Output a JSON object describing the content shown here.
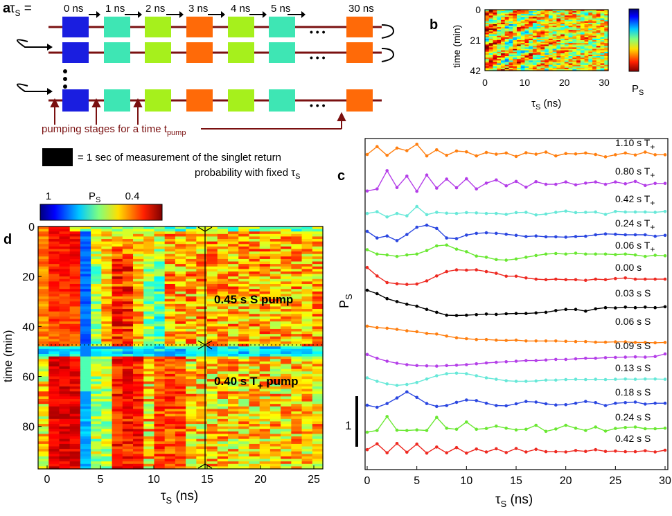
{
  "panel_a": {
    "label": "a",
    "tau_symbol": "τ",
    "tau_sub": "S",
    "tau_eq": " =",
    "times": [
      "0 ns",
      "1 ns",
      "2 ns",
      "3 ns",
      "4 ns",
      "5 ns",
      "30 ns"
    ],
    "block_colors": [
      "#1a1ee0",
      "#3ee6b4",
      "#a6f01c",
      "#ff6a08",
      "#a6f01c",
      "#3ee6b4",
      "#ff6a08"
    ],
    "ellipsis": "• • •",
    "wire_color": "#7a1010",
    "pump_text_main": "pumping stages for a time t",
    "pump_text_sub": "pump",
    "legend_line1": "= 1 sec of measurement of the singlet return",
    "legend_line2": "probability with fixed ",
    "legend_tau": "τ",
    "legend_tau_sub": "S"
  },
  "panel_b": {
    "label": "b",
    "ylabel": "time (min)",
    "yticks": [
      "0",
      "21",
      "42"
    ],
    "xticks": [
      "0",
      "10",
      "20",
      "30"
    ],
    "xlabel_main": "τ",
    "xlabel_sub": "S",
    "xlabel_unit": " (ns)",
    "colorbar_label_main": "P",
    "colorbar_label_sub": "S"
  },
  "panel_c": {
    "label": "c",
    "ylabel_main": "P",
    "ylabel_sub": "S",
    "xlabel_main": "τ",
    "xlabel_sub": "S",
    "xlabel_unit": " (ns)",
    "xticks": [
      "0",
      "5",
      "10",
      "15",
      "20",
      "25",
      "30"
    ],
    "scale_bar_label": "1"
  },
  "panel_d": {
    "label": "d",
    "colorbar_left": "1",
    "colorbar_mid_main": "P",
    "colorbar_mid_sub": "S",
    "colorbar_right": "0.4",
    "ylabel": "time (min)",
    "yticks": [
      "0",
      "20",
      "40",
      "60",
      "80"
    ],
    "xticks": [
      "0",
      "5",
      "10",
      "15",
      "20",
      "25"
    ],
    "xlabel_main": "τ",
    "xlabel_sub": "S",
    "xlabel_unit": " (ns)",
    "annotation_top": "0.45 s S pump",
    "annotation_bottom_main": "0.40 s T",
    "annotation_bottom_sub": "+",
    "annotation_bottom_end": " pump"
  },
  "chart_data": [
    {
      "type": "line",
      "panel": "c",
      "xlabel": "τS (ns)",
      "ylabel": "PS",
      "xlim": [
        0,
        30
      ],
      "x": [
        0,
        1,
        2,
        3,
        4,
        5,
        6,
        7,
        8,
        9,
        10,
        11,
        12,
        13,
        14,
        15,
        16,
        17,
        18,
        19,
        20,
        21,
        22,
        23,
        24,
        25,
        26,
        27,
        28,
        29,
        30
      ],
      "series": [
        {
          "name": "1.10 s T+",
          "color": "#ff7f10",
          "values": [
            0.5,
            0.77,
            0.47,
            0.72,
            0.63,
            0.85,
            0.45,
            0.66,
            0.47,
            0.62,
            0.59,
            0.45,
            0.57,
            0.51,
            0.55,
            0.43,
            0.56,
            0.51,
            0.58,
            0.45,
            0.53,
            0.52,
            0.55,
            0.5,
            0.42,
            0.49,
            0.55,
            0.48,
            0.58,
            0.49,
            0.49
          ]
        },
        {
          "name": "0.80 s T+",
          "color": "#b43ee8",
          "values": [
            0.22,
            0.29,
            0.92,
            0.34,
            0.73,
            0.21,
            0.77,
            0.32,
            0.63,
            0.33,
            0.64,
            0.29,
            0.49,
            0.6,
            0.4,
            0.55,
            0.35,
            0.54,
            0.45,
            0.45,
            0.53,
            0.43,
            0.49,
            0.53,
            0.45,
            0.53,
            0.47,
            0.55,
            0.41,
            0.48,
            0.48
          ]
        },
        {
          "name": "0.42 s T+",
          "color": "#66e8d8",
          "values": [
            0.4,
            0.46,
            0.28,
            0.4,
            0.32,
            0.64,
            0.36,
            0.44,
            0.41,
            0.4,
            0.43,
            0.42,
            0.4,
            0.4,
            0.37,
            0.43,
            0.44,
            0.35,
            0.38,
            0.44,
            0.48,
            0.43,
            0.44,
            0.45,
            0.37,
            0.47,
            0.45,
            0.45,
            0.45,
            0.44,
            0.47
          ]
        },
        {
          "name": "0.24 s T+",
          "color": "#2a46e0",
          "values": [
            0.62,
            0.39,
            0.46,
            0.3,
            0.51,
            0.76,
            0.83,
            0.72,
            0.39,
            0.37,
            0.49,
            0.55,
            0.57,
            0.55,
            0.52,
            0.48,
            0.44,
            0.46,
            0.43,
            0.43,
            0.42,
            0.44,
            0.45,
            0.5,
            0.53,
            0.52,
            0.5,
            0.5,
            0.5,
            0.45,
            0.48
          ]
        },
        {
          "name": "0.06 s T+",
          "color": "#6ae832",
          "values": [
            0.75,
            0.6,
            0.57,
            0.52,
            0.57,
            0.6,
            0.72,
            0.88,
            0.91,
            0.77,
            0.68,
            0.53,
            0.49,
            0.41,
            0.39,
            0.43,
            0.49,
            0.55,
            0.6,
            0.62,
            0.6,
            0.63,
            0.6,
            0.6,
            0.6,
            0.58,
            0.6,
            0.57,
            0.52,
            0.56,
            0.54
          ]
        },
        {
          "name": "0.00 s",
          "color": "#ee2a22",
          "values": [
            0.9,
            0.61,
            0.38,
            0.34,
            0.32,
            0.33,
            0.44,
            0.61,
            0.76,
            0.82,
            0.81,
            0.82,
            0.76,
            0.7,
            0.6,
            0.6,
            0.54,
            0.5,
            0.48,
            0.5,
            0.48,
            0.48,
            0.46,
            0.5,
            0.48,
            0.52,
            0.54,
            0.5,
            0.5,
            0.5,
            0.5
          ]
        },
        {
          "name": "0.03 s S",
          "color": "#000000",
          "values": [
            1.0,
            0.88,
            0.71,
            0.61,
            0.52,
            0.45,
            0.34,
            0.24,
            0.14,
            0.13,
            0.14,
            0.16,
            0.18,
            0.17,
            0.19,
            0.2,
            0.2,
            0.22,
            0.24,
            0.3,
            0.34,
            0.34,
            0.28,
            0.36,
            0.4,
            0.39,
            0.42,
            0.4,
            0.42,
            0.4,
            0.43
          ]
        },
        {
          "name": "0.06 s S",
          "color": "#ff7f10",
          "values": [
            0.74,
            0.69,
            0.67,
            0.63,
            0.58,
            0.55,
            0.49,
            0.47,
            0.4,
            0.34,
            0.31,
            0.28,
            0.28,
            0.26,
            0.25,
            0.26,
            0.23,
            0.23,
            0.23,
            0.23,
            0.22,
            0.21,
            0.21,
            0.19,
            0.19,
            0.2,
            0.2,
            0.18,
            0.18,
            0.17,
            0.18
          ]
        },
        {
          "name": "0.09 s S",
          "color": "#b43ee8",
          "values": [
            0.6,
            0.47,
            0.37,
            0.3,
            0.25,
            0.22,
            0.21,
            0.2,
            0.22,
            0.23,
            0.25,
            0.28,
            0.31,
            0.33,
            0.35,
            0.37,
            0.39,
            0.39,
            0.41,
            0.43,
            0.43,
            0.45,
            0.47,
            0.47,
            0.49,
            0.5,
            0.51,
            0.52,
            0.51,
            0.53,
            0.62
          ]
        },
        {
          "name": "0.13 s S",
          "color": "#66e8d8",
          "values": [
            0.56,
            0.44,
            0.35,
            0.3,
            0.33,
            0.4,
            0.52,
            0.63,
            0.7,
            0.72,
            0.7,
            0.63,
            0.56,
            0.51,
            0.46,
            0.44,
            0.44,
            0.45,
            0.48,
            0.48,
            0.5,
            0.51,
            0.5,
            0.51,
            0.5,
            0.51,
            0.52,
            0.51,
            0.52,
            0.52,
            0.51
          ]
        },
        {
          "name": "0.18 s S",
          "color": "#2a46e0",
          "values": [
            0.45,
            0.38,
            0.51,
            0.7,
            0.91,
            0.72,
            0.51,
            0.41,
            0.44,
            0.55,
            0.63,
            0.61,
            0.52,
            0.44,
            0.43,
            0.5,
            0.58,
            0.56,
            0.5,
            0.46,
            0.47,
            0.52,
            0.58,
            0.54,
            0.44,
            0.52,
            0.54,
            0.56,
            0.49,
            0.52,
            0.52
          ]
        },
        {
          "name": "0.24 s S",
          "color": "#6ae832",
          "values": [
            0.38,
            0.44,
            0.92,
            0.45,
            0.44,
            0.46,
            0.44,
            0.89,
            0.52,
            0.48,
            0.73,
            0.48,
            0.51,
            0.59,
            0.52,
            0.46,
            0.48,
            0.62,
            0.41,
            0.49,
            0.62,
            0.52,
            0.44,
            0.56,
            0.42,
            0.51,
            0.54,
            0.56,
            0.5,
            0.5,
            0.52
          ]
        },
        {
          "name": "0.42 s S",
          "color": "#ee2a22",
          "values": [
            0.52,
            0.72,
            0.41,
            0.73,
            0.43,
            0.71,
            0.4,
            0.61,
            0.41,
            0.59,
            0.4,
            0.54,
            0.44,
            0.55,
            0.42,
            0.56,
            0.44,
            0.53,
            0.45,
            0.45,
            0.44,
            0.49,
            0.46,
            0.52,
            0.46,
            0.47,
            0.45,
            0.45,
            0.48,
            0.44,
            0.5
          ]
        }
      ]
    },
    {
      "type": "heatmap",
      "panel": "b",
      "xlabel": "τS (ns)",
      "ylabel": "time (min)",
      "xlim": [
        0,
        30
      ],
      "ylim": [
        0,
        42
      ],
      "colorbar_label": "PS"
    },
    {
      "type": "heatmap",
      "panel": "d",
      "xlabel": "τS (ns)",
      "ylabel": "time (min)",
      "xlim": [
        0,
        26
      ],
      "ylim": [
        0,
        97
      ],
      "colorbar": {
        "label": "PS",
        "range_left": 1,
        "range_right": 0.4
      },
      "annotations": [
        "0.45 s S pump",
        "0.40 s T+ pump"
      ],
      "marker_x": 15,
      "transition_time": 48
    }
  ]
}
